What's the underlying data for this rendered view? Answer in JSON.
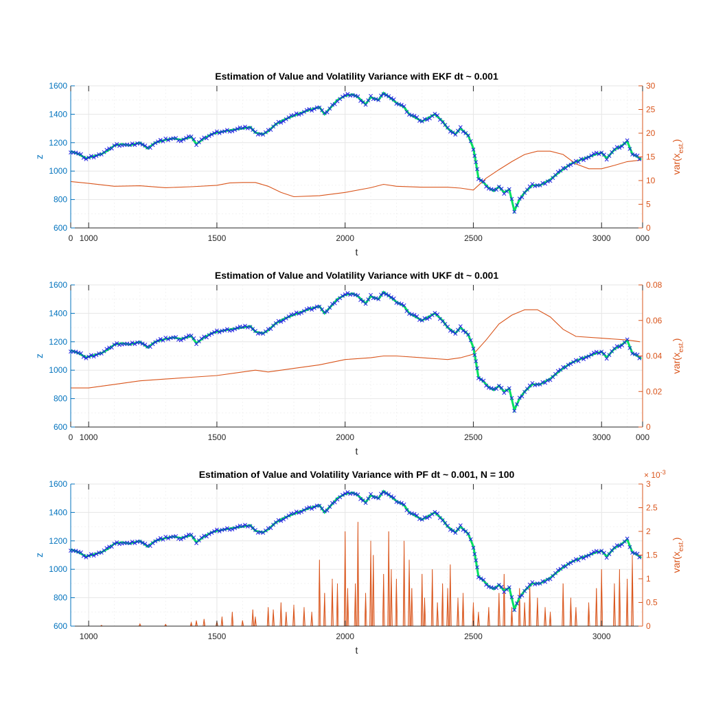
{
  "chart_data": [
    {
      "type": "line",
      "title": "Estimation of Value and Volatility Variance with EKF dt ~ 0.001",
      "xlabel": "t",
      "ylabel_left": "z",
      "ylabel_right": "var(x_est.)",
      "ylabel_right_main": "var(x",
      "ylabel_right_sub": "est.",
      "ylabel_right_close": ")",
      "xlim": [
        930,
        3160
      ],
      "ylim_left": [
        600,
        1600
      ],
      "ylim_right": [
        0,
        30
      ],
      "x_ticks": [
        "0",
        "1000",
        "1500",
        "2000",
        "2500",
        "3000",
        "000"
      ],
      "x_tick_values": [
        930,
        1000,
        1500,
        2000,
        2500,
        3000,
        3160
      ],
      "y_left_ticks": [
        600,
        800,
        1000,
        1200,
        1400,
        1600
      ],
      "y_right_ticks": [
        0,
        5,
        10,
        15,
        20,
        25,
        30
      ],
      "grid": true,
      "series": [
        {
          "axis": "right",
          "color": "#D95319",
          "x": [
            930,
            1000,
            1100,
            1200,
            1300,
            1400,
            1500,
            1550,
            1600,
            1650,
            1700,
            1750,
            1800,
            1900,
            2000,
            2100,
            2150,
            2200,
            2300,
            2400,
            2450,
            2500,
            2550,
            2600,
            2650,
            2700,
            2750,
            2800,
            2850,
            2900,
            2950,
            3000,
            3050,
            3100,
            3150
          ],
          "values": [
            9.8,
            9.4,
            8.8,
            8.9,
            8.5,
            8.7,
            9.0,
            9.5,
            9.6,
            9.6,
            8.8,
            7.5,
            6.6,
            6.8,
            7.5,
            8.5,
            9.2,
            8.8,
            8.6,
            8.6,
            8.4,
            8.0,
            10.5,
            12.3,
            14.0,
            15.5,
            16.2,
            16.2,
            15.5,
            13.5,
            12.5,
            12.5,
            13.2,
            14.0,
            14.3
          ]
        }
      ]
    },
    {
      "type": "line",
      "title": "Estimation of Value and Volatility Variance with UKF dt ~ 0.001",
      "xlabel": "t",
      "ylabel_left": "z",
      "ylabel_right": "var(x_est.)",
      "ylabel_right_main": "var(x",
      "ylabel_right_sub": "est.",
      "ylabel_right_close": ")",
      "xlim": [
        930,
        3160
      ],
      "ylim_left": [
        600,
        1600
      ],
      "ylim_right": [
        0,
        0.08
      ],
      "x_ticks": [
        "0",
        "1000",
        "1500",
        "2000",
        "2500",
        "3000",
        "000"
      ],
      "x_tick_values": [
        930,
        1000,
        1500,
        2000,
        2500,
        3000,
        3160
      ],
      "y_left_ticks": [
        600,
        800,
        1000,
        1200,
        1400,
        1600
      ],
      "y_right_ticks": [
        0,
        0.02,
        0.04,
        0.06,
        0.08
      ],
      "grid": true,
      "series": [
        {
          "axis": "right",
          "color": "#D95319",
          "x": [
            930,
            1000,
            1100,
            1200,
            1300,
            1400,
            1500,
            1600,
            1650,
            1700,
            1800,
            1900,
            2000,
            2100,
            2150,
            2200,
            2300,
            2400,
            2450,
            2500,
            2550,
            2600,
            2650,
            2700,
            2750,
            2800,
            2850,
            2900,
            3000,
            3100,
            3150
          ],
          "values": [
            0.022,
            0.022,
            0.024,
            0.026,
            0.027,
            0.028,
            0.029,
            0.031,
            0.032,
            0.031,
            0.033,
            0.035,
            0.038,
            0.039,
            0.04,
            0.04,
            0.039,
            0.038,
            0.039,
            0.041,
            0.049,
            0.058,
            0.063,
            0.066,
            0.066,
            0.062,
            0.055,
            0.051,
            0.05,
            0.049,
            0.048
          ]
        }
      ]
    },
    {
      "type": "line",
      "title": "Estimation of Value and Volatility Variance with PF dt ~ 0.001, N = 100",
      "xlabel": "t",
      "ylabel_left": "z",
      "ylabel_right": "var(x_est.)",
      "ylabel_right_main": "var(x",
      "ylabel_right_sub": "est.",
      "ylabel_right_close": ")",
      "right_exponent_base": "× 10",
      "right_exponent_power": "-3",
      "xlim": [
        930,
        3160
      ],
      "ylim_left": [
        600,
        1600
      ],
      "ylim_right": [
        0,
        3
      ],
      "x_ticks": [
        "1000",
        "1500",
        "2000",
        "2500",
        "3000"
      ],
      "x_tick_values": [
        1000,
        1500,
        2000,
        2500,
        3000
      ],
      "y_left_ticks": [
        600,
        800,
        1000,
        1200,
        1400,
        1600
      ],
      "y_right_ticks": [
        0,
        0.5,
        1,
        1.5,
        2,
        2.5,
        3
      ],
      "grid": true,
      "series": [
        {
          "axis": "right",
          "color": "#D95319",
          "style": "spikes",
          "x": [
            1050,
            1200,
            1300,
            1400,
            1420,
            1450,
            1500,
            1520,
            1560,
            1600,
            1640,
            1650,
            1700,
            1720,
            1750,
            1770,
            1800,
            1840,
            1870,
            1900,
            1920,
            1950,
            1970,
            2000,
            2010,
            2040,
            2050,
            2080,
            2100,
            2110,
            2150,
            2170,
            2180,
            2200,
            2230,
            2250,
            2260,
            2300,
            2310,
            2340,
            2360,
            2380,
            2400,
            2410,
            2440,
            2460,
            2500,
            2520,
            2560,
            2600,
            2620,
            2650,
            2680,
            2700,
            2720,
            2750,
            2780,
            2800,
            2850,
            2880,
            2900,
            2950,
            2980,
            3000,
            3050,
            3070,
            3100,
            3120
          ],
          "values": [
            0.02,
            0.05,
            0.04,
            0.08,
            0.12,
            0.15,
            0.1,
            0.2,
            0.3,
            0.12,
            0.35,
            0.2,
            0.4,
            0.35,
            0.5,
            0.3,
            0.45,
            0.4,
            0.3,
            1.4,
            0.7,
            1.0,
            0.9,
            2.0,
            0.8,
            0.9,
            2.2,
            0.7,
            1.8,
            1.5,
            1.1,
            2.0,
            1.2,
            1.0,
            1.8,
            1.4,
            0.8,
            1.1,
            0.6,
            1.2,
            0.5,
            0.9,
            0.8,
            1.3,
            0.6,
            0.7,
            0.5,
            0.3,
            0.4,
            0.7,
            1.1,
            0.4,
            0.8,
            0.5,
            0.9,
            0.6,
            0.4,
            0.3,
            0.9,
            0.6,
            0.4,
            0.5,
            0.8,
            1.2,
            0.9,
            1.2,
            1.0,
            1.5
          ]
        }
      ]
    }
  ],
  "shared_observation": {
    "marker": "x",
    "marker_color": "#1F1FE0",
    "estimate_color": "#00E060",
    "x": [
      930,
      960,
      990,
      1010,
      1050,
      1080,
      1100,
      1130,
      1160,
      1200,
      1230,
      1260,
      1300,
      1330,
      1360,
      1400,
      1420,
      1450,
      1480,
      1500,
      1530,
      1560,
      1600,
      1630,
      1650,
      1680,
      1700,
      1730,
      1760,
      1800,
      1830,
      1860,
      1900,
      1920,
      1940,
      1970,
      2000,
      2030,
      2050,
      2080,
      2100,
      2130,
      2150,
      2180,
      2200,
      2230,
      2250,
      2280,
      2300,
      2330,
      2350,
      2380,
      2400,
      2430,
      2450,
      2480,
      2500,
      2510,
      2520,
      2540,
      2560,
      2580,
      2600,
      2620,
      2640,
      2660,
      2680,
      2700,
      2730,
      2760,
      2800,
      2840,
      2880,
      2920,
      2950,
      2980,
      3000,
      3020,
      3050,
      3080,
      3100,
      3120,
      3140,
      3155
    ],
    "values": [
      1140,
      1120,
      1090,
      1100,
      1120,
      1150,
      1180,
      1190,
      1180,
      1200,
      1160,
      1200,
      1220,
      1230,
      1220,
      1240,
      1190,
      1230,
      1260,
      1270,
      1280,
      1290,
      1300,
      1310,
      1270,
      1260,
      1280,
      1330,
      1360,
      1390,
      1410,
      1430,
      1450,
      1400,
      1440,
      1500,
      1530,
      1540,
      1520,
      1470,
      1520,
      1500,
      1550,
      1510,
      1480,
      1450,
      1400,
      1370,
      1350,
      1380,
      1400,
      1350,
      1300,
      1260,
      1300,
      1250,
      1160,
      1060,
      950,
      920,
      880,
      860,
      890,
      850,
      870,
      720,
      800,
      850,
      900,
      900,
      940,
      1000,
      1050,
      1080,
      1100,
      1120,
      1130,
      1090,
      1150,
      1180,
      1210,
      1120,
      1100,
      1080
    ]
  }
}
